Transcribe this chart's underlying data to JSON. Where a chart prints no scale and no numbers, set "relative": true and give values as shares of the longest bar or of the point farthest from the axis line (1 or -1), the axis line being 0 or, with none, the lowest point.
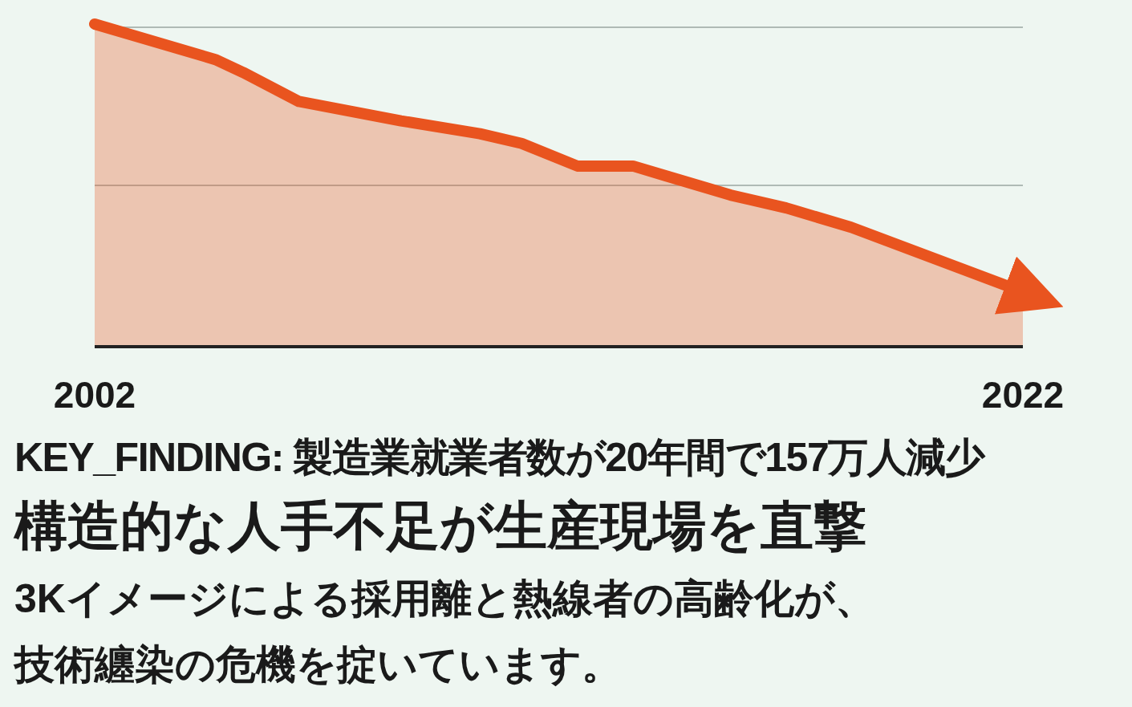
{
  "chart_data": {
    "type": "area",
    "relative": true,
    "color": "#e9541f",
    "ref_lines": [
      {
        "axis": "y",
        "value": 0.99,
        "color": "#9aa6a0"
      },
      {
        "axis": "y",
        "value": 0.5,
        "color": "#9aa6a0"
      }
    ],
    "x": [
      2002,
      2004.6,
      2005.2,
      2006.4,
      2008.6,
      2010.3,
      2011.2,
      2012.4,
      2013.6,
      2014.3,
      2015.7,
      2016.9,
      2018.3,
      2022
    ],
    "values": [
      1.0,
      0.89,
      0.85,
      0.76,
      0.7,
      0.66,
      0.63,
      0.56,
      0.56,
      0.53,
      0.47,
      0.43,
      0.37,
      0.17
    ],
    "xlim": [
      2002,
      2022
    ],
    "xticks": [
      2002,
      2022
    ],
    "annotations": [
      "KEY_FINDING: 製造業就業者数が20年間で157万人減少"
    ],
    "title": "構造的な人手不足が生産現場を直撃",
    "subtitle": "3Kイメージによる採用離と熱線者の高齢化が、技術纏染の危機を掟いています。"
  }
}
